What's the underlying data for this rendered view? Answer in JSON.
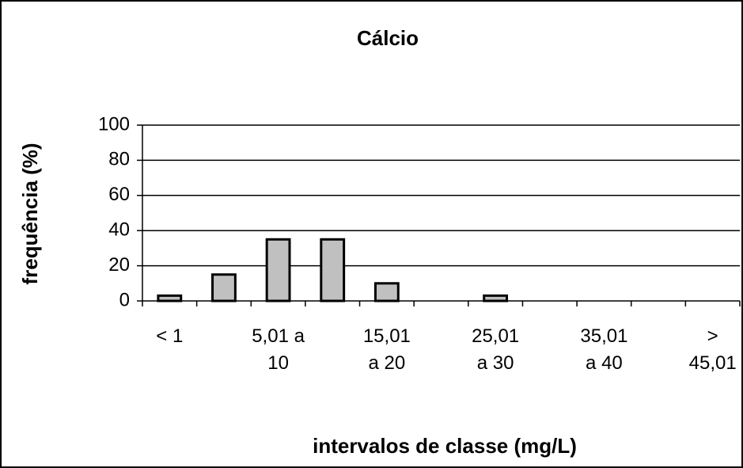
{
  "chart_data": {
    "type": "bar",
    "title": "Cálcio",
    "x_label": "intervalos de classe (mg/L)",
    "y_label": "frequência (%)",
    "categories": [
      "< 1",
      null,
      "5,01 a 10",
      null,
      "15,01 a 20",
      null,
      "25,01 a 30",
      null,
      "35,01 a 40",
      null,
      "> 45,01"
    ],
    "values": [
      3,
      15,
      35,
      35,
      10,
      0,
      3,
      0,
      0,
      0,
      0
    ],
    "color": "#c0c0c0",
    "ylim": [
      0,
      100
    ],
    "yticks": [
      0,
      20,
      40,
      60,
      80,
      100
    ],
    "grid": true
  }
}
